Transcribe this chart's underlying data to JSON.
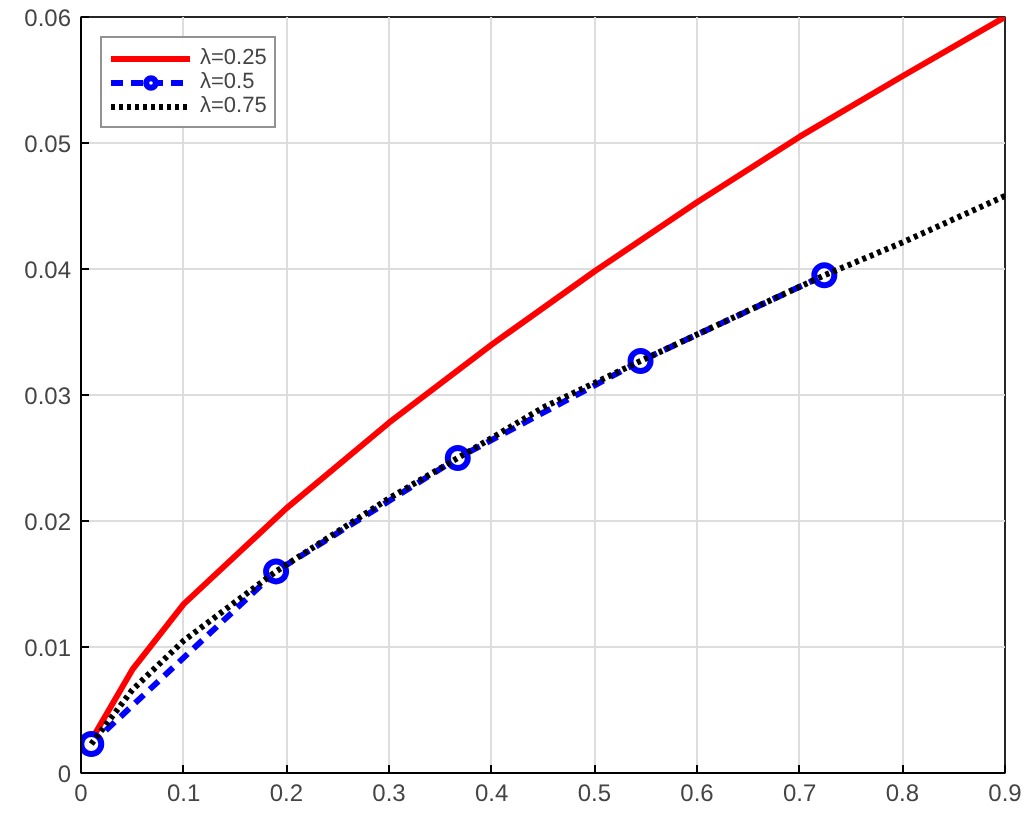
{
  "chart_data": {
    "type": "line",
    "series": [
      {
        "name": "λ=0.25",
        "color": "#ff0000",
        "line_style": "solid",
        "marker": "none",
        "x": [
          0.01,
          0.05,
          0.1,
          0.2,
          0.3,
          0.4,
          0.5,
          0.6,
          0.7,
          0.8,
          0.9
        ],
        "values": [
          0.0026,
          0.0082,
          0.0134,
          0.021,
          0.0278,
          0.034,
          0.0398,
          0.0453,
          0.0505,
          0.0553,
          0.06
        ]
      },
      {
        "name": "λ=0.5",
        "color": "#0000ff",
        "line_style": "dashed",
        "marker": "circle",
        "x": [
          0.01,
          0.19,
          0.367,
          0.545,
          0.724
        ],
        "values": [
          0.0023,
          0.016,
          0.025,
          0.0327,
          0.0395
        ]
      },
      {
        "name": "λ=0.75",
        "color": "#000000",
        "line_style": "dotted",
        "marker": "none",
        "x": [
          0.01,
          0.05,
          0.1,
          0.19,
          0.3,
          0.367,
          0.45,
          0.545,
          0.65,
          0.724,
          0.8,
          0.9
        ],
        "values": [
          0.0023,
          0.0066,
          0.0105,
          0.016,
          0.0218,
          0.025,
          0.029,
          0.0327,
          0.0367,
          0.0395,
          0.0421,
          0.0458
        ]
      }
    ],
    "xlim": [
      0,
      0.9
    ],
    "ylim": [
      0,
      0.06
    ],
    "xticks": [
      0,
      0.1,
      0.2,
      0.3,
      0.4,
      0.5,
      0.6,
      0.7,
      0.8,
      0.9
    ],
    "yticks": [
      0,
      0.01,
      0.02,
      0.03,
      0.04,
      0.05,
      0.06
    ],
    "grid": true,
    "legend": "top left"
  }
}
